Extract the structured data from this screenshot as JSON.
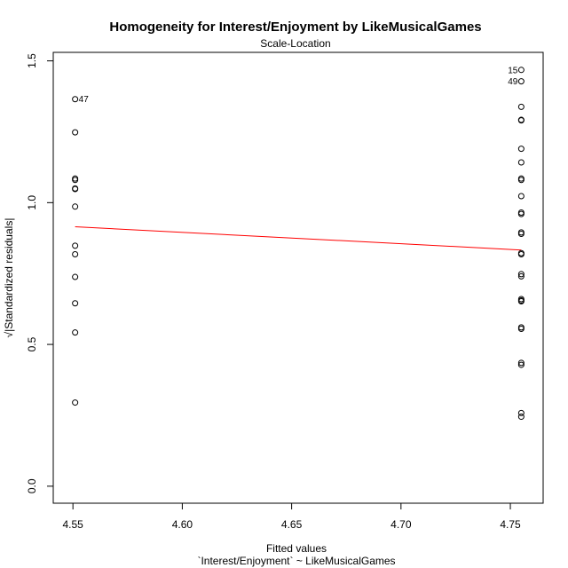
{
  "chart_data": {
    "type": "scatter",
    "title": "Homogeneity for Interest/Enjoyment by LikeMusicalGames",
    "subtitle": "Scale-Location",
    "xlabel": "Fitted values",
    "xlabel2": "`Interest/Enjoyment` ~ LikeMusicalGames",
    "ylabel": "√|Standardized residuals|",
    "xlim": [
      4.541,
      4.765
    ],
    "ylim": [
      -0.06,
      1.53
    ],
    "xticks": [
      4.55,
      4.6,
      4.65,
      4.7,
      4.75
    ],
    "xtick_labels": [
      "4.55",
      "4.60",
      "4.65",
      "4.70",
      "4.75"
    ],
    "yticks": [
      0.0,
      0.5,
      1.0,
      1.5
    ],
    "ytick_labels": [
      "0.0",
      "0.5",
      "1.0",
      "1.5"
    ],
    "grid": false,
    "series": [
      {
        "x": 4.551,
        "y": [
          1.365,
          1.248,
          1.085,
          1.08,
          1.05,
          1.048,
          0.986,
          0.848,
          0.818,
          0.738,
          0.645,
          0.542,
          0.295
        ]
      },
      {
        "x": 4.755,
        "y": [
          1.468,
          1.428,
          1.338,
          1.292,
          1.29,
          1.19,
          1.142,
          1.085,
          1.08,
          1.023,
          0.965,
          0.96,
          0.895,
          0.89,
          0.822,
          0.818,
          0.748,
          0.74,
          0.66,
          0.655,
          0.652,
          0.56,
          0.555,
          0.435,
          0.428,
          0.258,
          0.245
        ]
      }
    ],
    "smoother": {
      "x": [
        4.551,
        4.755
      ],
      "y": [
        0.915,
        0.833
      ],
      "color": "#ff0000"
    },
    "annotations": [
      {
        "label": "47",
        "x": 4.551,
        "y": 1.365,
        "side": "right"
      },
      {
        "label": "15",
        "x": 4.755,
        "y": 1.468,
        "side": "left"
      },
      {
        "label": "49",
        "x": 4.755,
        "y": 1.428,
        "side": "left"
      }
    ],
    "colors": {
      "points": "#000000",
      "smoother": "#ff0000"
    }
  }
}
